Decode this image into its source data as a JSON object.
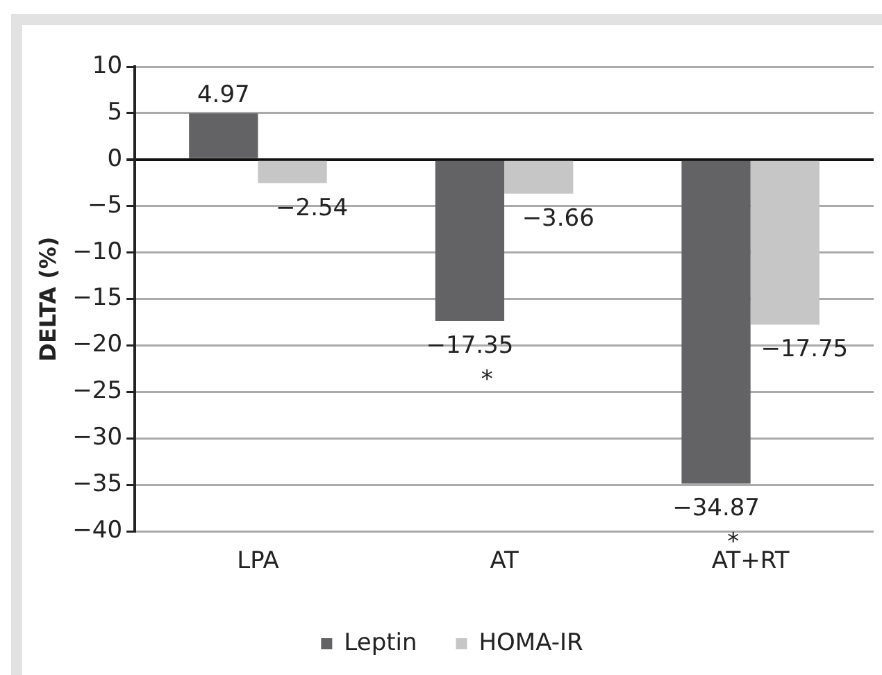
{
  "chart_data": {
    "type": "bar",
    "ylabel": "DELTA (%)",
    "categories": [
      "LPA",
      "AT",
      "AT+RT"
    ],
    "series": [
      {
        "name": "Leptin",
        "color": "#636365",
        "values": [
          4.97,
          -17.35,
          -34.87
        ]
      },
      {
        "name": "HOMA-IR",
        "color": "#c6c6c6",
        "values": [
          -2.54,
          -3.66,
          -17.75
        ]
      }
    ],
    "ylim": [
      -40,
      10
    ],
    "yticks": [
      -40,
      -35,
      -30,
      -25,
      -20,
      -15,
      -10,
      -5,
      0,
      5,
      10
    ],
    "grid": "y",
    "legend": "bottom",
    "data_labels": true,
    "annotations": [
      "*",
      "*"
    ]
  }
}
